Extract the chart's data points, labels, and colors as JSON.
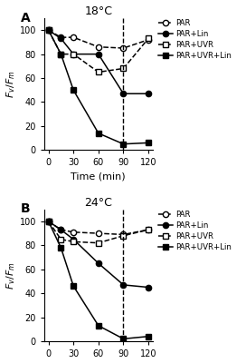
{
  "time": [
    0,
    15,
    30,
    60,
    90,
    120
  ],
  "panel_A": {
    "title": "18°C",
    "PAR": [
      100,
      94,
      94,
      86,
      85,
      92
    ],
    "PAR_Lin": [
      100,
      93,
      80,
      80,
      47,
      47
    ],
    "PAR_UVR": [
      100,
      80,
      80,
      65,
      68,
      93
    ],
    "PAR_UVR_Lin": [
      100,
      80,
      50,
      14,
      5,
      6
    ]
  },
  "panel_B": {
    "title": "24°C",
    "PAR": [
      100,
      93,
      91,
      90,
      89,
      93
    ],
    "PAR_Lin": [
      100,
      93,
      85,
      65,
      47,
      45
    ],
    "PAR_UVR": [
      100,
      85,
      83,
      82,
      88,
      93
    ],
    "PAR_UVR_Lin": [
      100,
      78,
      46,
      13,
      2,
      4
    ]
  },
  "legend_labels": [
    "PAR",
    "PAR+Lin",
    "PAR+UVR",
    "PAR+UVR+Lin"
  ],
  "ylabel": "$F_v/F_m$",
  "xlabel": "Time (min)",
  "ylim": [
    0,
    110
  ],
  "yticks": [
    0,
    20,
    40,
    60,
    80,
    100
  ],
  "xticks": [
    0,
    30,
    60,
    90,
    120
  ],
  "dashed_line_x": 90,
  "background_color": "#ffffff",
  "line_color": "#000000"
}
